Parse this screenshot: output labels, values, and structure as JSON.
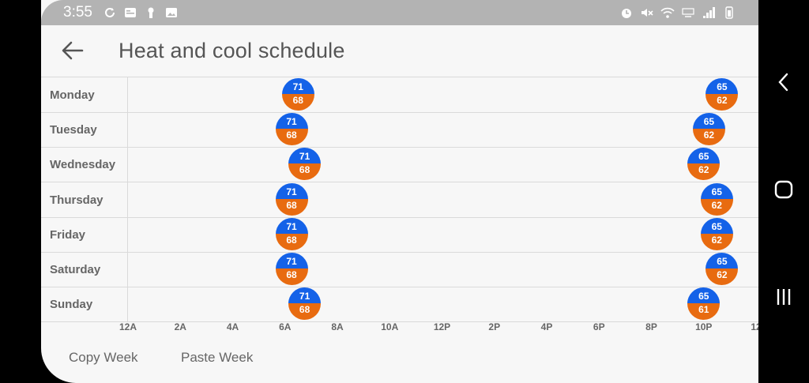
{
  "status_bar": {
    "time": "3:55",
    "left_icons": [
      "sync-icon",
      "news-icon",
      "keyhole-icon",
      "image-icon"
    ],
    "right_icons": [
      "alarm-icon",
      "mute-icon",
      "wifi-icon",
      "lte-icon",
      "signal-icon",
      "battery-icon"
    ]
  },
  "header": {
    "title": "Heat and cool schedule",
    "back_icon": "back-arrow-icon"
  },
  "colors": {
    "heat": "#1462e8",
    "cool": "#e86b10"
  },
  "schedule": {
    "days": [
      {
        "label": "Monday",
        "events": [
          {
            "hour": 6.5,
            "heat": "71",
            "cool": "68"
          },
          {
            "hour": 22.7,
            "heat": "65",
            "cool": "62"
          }
        ]
      },
      {
        "label": "Tuesday",
        "events": [
          {
            "hour": 6.25,
            "heat": "71",
            "cool": "68"
          },
          {
            "hour": 22.2,
            "heat": "65",
            "cool": "62"
          }
        ]
      },
      {
        "label": "Wednesday",
        "events": [
          {
            "hour": 6.75,
            "heat": "71",
            "cool": "68"
          },
          {
            "hour": 22.0,
            "heat": "65",
            "cool": "62"
          }
        ]
      },
      {
        "label": "Thursday",
        "events": [
          {
            "hour": 6.25,
            "heat": "71",
            "cool": "68"
          },
          {
            "hour": 22.5,
            "heat": "65",
            "cool": "62"
          }
        ]
      },
      {
        "label": "Friday",
        "events": [
          {
            "hour": 6.25,
            "heat": "71",
            "cool": "68"
          },
          {
            "hour": 22.5,
            "heat": "65",
            "cool": "62"
          }
        ]
      },
      {
        "label": "Saturday",
        "events": [
          {
            "hour": 6.25,
            "heat": "71",
            "cool": "68"
          },
          {
            "hour": 22.7,
            "heat": "65",
            "cool": "62"
          }
        ]
      },
      {
        "label": "Sunday",
        "events": [
          {
            "hour": 6.75,
            "heat": "71",
            "cool": "68"
          },
          {
            "hour": 22.0,
            "heat": "65",
            "cool": "61"
          }
        ]
      }
    ],
    "axis_ticks": [
      "12A",
      "2A",
      "4A",
      "6A",
      "8A",
      "10A",
      "12P",
      "2P",
      "4P",
      "6P",
      "8P",
      "10P",
      "12"
    ]
  },
  "footer": {
    "copy_week": "Copy Week",
    "paste_week": "Paste Week"
  },
  "nav": {
    "back": "nav-back-icon",
    "home": "nav-home-icon",
    "recents": "nav-recents-icon"
  }
}
